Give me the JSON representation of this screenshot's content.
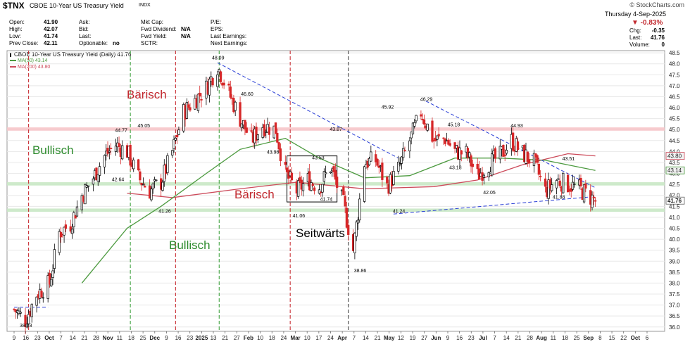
{
  "header": {
    "symbol": "$TNX",
    "name": "CBOE 10-Year US Treasury Yield",
    "exchange": "INDX",
    "watermark": "© StockCharts.com",
    "date": "Thursday  4-Sep-2025",
    "change_pct": "▼ -0.83%",
    "left_cols": [
      [
        {
          "k": "Open:",
          "v": "41.90"
        },
        {
          "k": "High:",
          "v": "42.07"
        },
        {
          "k": "Low:",
          "v": "41.74"
        },
        {
          "k": "Prev Close:",
          "v": "42.11"
        }
      ],
      [
        {
          "k": "Ask:",
          "v": ""
        },
        {
          "k": "Bid:",
          "v": ""
        },
        {
          "k": "Last:",
          "v": ""
        },
        {
          "k": "Optionable:",
          "v": "no"
        }
      ],
      [
        {
          "k": "Mkt Cap:",
          "v": ""
        },
        {
          "k": "Fwd Dividend:",
          "v": "N/A"
        },
        {
          "k": "Fwd Yield:",
          "v": "N/A"
        },
        {
          "k": "SCTR:",
          "v": ""
        }
      ],
      [
        {
          "k": "P/E:",
          "v": ""
        },
        {
          "k": "EPS:",
          "v": ""
        },
        {
          "k": "Last Earnings:",
          "v": ""
        },
        {
          "k": "Next Earnings:",
          "v": ""
        }
      ]
    ],
    "right_stats": [
      {
        "k": "Chg:",
        "v": "-0.35"
      },
      {
        "k": "Last:",
        "v": "41.76"
      },
      {
        "k": "Volume:",
        "v": "0"
      }
    ]
  },
  "legend": {
    "main": "CBOE 10-Year US Treasury Yield (Daily) 41.76",
    "ma50": "MA(50) 43.14",
    "ma200": "MA(200) 43.80"
  },
  "colors": {
    "up": "#ffffff",
    "down": "#d62728",
    "ma50": "#4c9a3f",
    "ma200": "#cc4a5a",
    "support_band": "#c9e8c5",
    "resistance_band": "#f6c5c9",
    "red_vline": "#c41e24",
    "green_vline": "#2e9a2e",
    "black_vline": "#333333",
    "trendline": "#2a3fd6",
    "bullish_text": "#2e8b2e",
    "bearish_text": "#c1272d",
    "sideways_text": "#000000",
    "price_tag": "#888888"
  },
  "chart_data": {
    "type": "candlestick",
    "title": "CBOE 10-Year US Treasury Yield (Daily)",
    "ylim": [
      35.8,
      48.6
    ],
    "yticks": [
      36.0,
      36.5,
      37.0,
      37.5,
      38.0,
      38.5,
      39.0,
      39.5,
      40.0,
      40.5,
      41.0,
      41.5,
      42.0,
      42.5,
      43.0,
      43.5,
      44.0,
      44.5,
      45.0,
      45.5,
      46.0,
      46.5,
      47.0,
      47.5,
      48.0,
      48.5
    ],
    "xlabels": [
      "9",
      "16",
      "23",
      "Oct",
      "7",
      "14",
      "21",
      "28",
      "Nov",
      "11",
      "18",
      "25",
      "Dec",
      "9",
      "16",
      "23",
      "2025",
      "13",
      "21",
      "27",
      "Feb",
      "10",
      "18",
      "24",
      "Mar",
      "10",
      "17",
      "24",
      "Apr",
      "7",
      "14",
      "21",
      "May",
      "12",
      "19",
      "27",
      "Jun",
      "9",
      "16",
      "23",
      "Jul",
      "7",
      "14",
      "21",
      "28",
      "Aug",
      "11",
      "18",
      "25",
      "Sep",
      "8",
      "15",
      "22",
      "Oct",
      "6"
    ],
    "anchors": [
      {
        "d": "2024-09-09",
        "v": 36.8
      },
      {
        "d": "2024-09-16",
        "v": 36.3
      },
      {
        "d": "2024-09-23",
        "v": 37.5
      },
      {
        "d": "2024-10-01",
        "v": 38.0
      },
      {
        "d": "2024-10-07",
        "v": 40.3
      },
      {
        "d": "2024-10-14",
        "v": 40.7
      },
      {
        "d": "2024-10-21",
        "v": 42.0
      },
      {
        "d": "2024-10-28",
        "v": 42.8
      },
      {
        "d": "2024-11-04",
        "v": 43.8
      },
      {
        "d": "2024-11-11",
        "v": 44.3
      },
      {
        "d": "2024-11-18",
        "v": 44.0
      },
      {
        "d": "2024-11-25",
        "v": 42.8
      },
      {
        "d": "2024-12-02",
        "v": 42.2
      },
      {
        "d": "2024-12-09",
        "v": 42.6
      },
      {
        "d": "2024-12-16",
        "v": 44.0
      },
      {
        "d": "2024-12-23",
        "v": 45.8
      },
      {
        "d": "2025-01-06",
        "v": 46.9
      },
      {
        "d": "2025-01-13",
        "v": 47.9
      },
      {
        "d": "2025-01-21",
        "v": 46.5
      },
      {
        "d": "2025-01-27",
        "v": 45.5
      },
      {
        "d": "2025-02-03",
        "v": 44.5
      },
      {
        "d": "2025-02-10",
        "v": 45.2
      },
      {
        "d": "2025-02-18",
        "v": 45.0
      },
      {
        "d": "2025-02-24",
        "v": 43.0
      },
      {
        "d": "2025-03-03",
        "v": 42.2
      },
      {
        "d": "2025-03-10",
        "v": 42.7
      },
      {
        "d": "2025-03-17",
        "v": 42.4
      },
      {
        "d": "2025-03-24",
        "v": 43.3
      },
      {
        "d": "2025-04-01",
        "v": 41.6
      },
      {
        "d": "2025-04-07",
        "v": 39.5
      },
      {
        "d": "2025-04-14",
        "v": 43.5
      },
      {
        "d": "2025-04-21",
        "v": 43.6
      },
      {
        "d": "2025-04-28",
        "v": 42.4
      },
      {
        "d": "2025-05-05",
        "v": 43.2
      },
      {
        "d": "2025-05-12",
        "v": 44.5
      },
      {
        "d": "2025-05-19",
        "v": 45.8
      },
      {
        "d": "2025-05-27",
        "v": 44.5
      },
      {
        "d": "2025-06-03",
        "v": 44.6
      },
      {
        "d": "2025-06-09",
        "v": 44.0
      },
      {
        "d": "2025-06-16",
        "v": 43.9
      },
      {
        "d": "2025-06-23",
        "v": 42.9
      },
      {
        "d": "2025-07-01",
        "v": 43.5
      },
      {
        "d": "2025-07-07",
        "v": 43.8
      },
      {
        "d": "2025-07-14",
        "v": 44.5
      },
      {
        "d": "2025-07-21",
        "v": 43.9
      },
      {
        "d": "2025-07-28",
        "v": 43.5
      },
      {
        "d": "2025-08-04",
        "v": 42.2
      },
      {
        "d": "2025-08-11",
        "v": 42.7
      },
      {
        "d": "2025-08-18",
        "v": 42.5
      },
      {
        "d": "2025-08-25",
        "v": 42.3
      },
      {
        "d": "2025-09-04",
        "v": 41.76
      }
    ],
    "ma50": [
      {
        "d": "2024-09-09",
        "v": null
      },
      {
        "d": "2024-10-21",
        "v": 38.0
      },
      {
        "d": "2024-11-18",
        "v": 40.5
      },
      {
        "d": "2024-12-09",
        "v": 41.5
      },
      {
        "d": "2025-01-06",
        "v": 43.0
      },
      {
        "d": "2025-01-27",
        "v": 44.1
      },
      {
        "d": "2025-02-24",
        "v": 44.6
      },
      {
        "d": "2025-03-17",
        "v": 43.7
      },
      {
        "d": "2025-04-14",
        "v": 42.8
      },
      {
        "d": "2025-05-12",
        "v": 42.9
      },
      {
        "d": "2025-06-09",
        "v": 43.7
      },
      {
        "d": "2025-07-07",
        "v": 43.7
      },
      {
        "d": "2025-08-04",
        "v": 43.6
      },
      {
        "d": "2025-09-04",
        "v": 43.14
      }
    ],
    "ma200": [
      {
        "d": "2024-09-09",
        "v": null
      },
      {
        "d": "2024-11-18",
        "v": 42.1
      },
      {
        "d": "2024-12-16",
        "v": 41.9
      },
      {
        "d": "2025-01-27",
        "v": 42.3
      },
      {
        "d": "2025-03-03",
        "v": 42.6
      },
      {
        "d": "2025-04-14",
        "v": 42.3
      },
      {
        "d": "2025-05-27",
        "v": 42.4
      },
      {
        "d": "2025-06-23",
        "v": 42.7
      },
      {
        "d": "2025-07-21",
        "v": 43.4
      },
      {
        "d": "2025-08-18",
        "v": 43.9
      },
      {
        "d": "2025-09-04",
        "v": 43.8
      }
    ],
    "bands": [
      {
        "kind": "resistance",
        "from": 44.95,
        "to": 45.1
      },
      {
        "kind": "support",
        "from": 42.45,
        "to": 42.6
      },
      {
        "kind": "support",
        "from": 41.25,
        "to": 41.4
      }
    ],
    "trendlines": [
      {
        "from": {
          "d": "2025-01-13",
          "v": 48.05
        },
        "to": {
          "d": "2025-05-05",
          "v": 43.7
        }
      },
      {
        "from": {
          "d": "2025-05-22",
          "v": 46.3
        },
        "to": {
          "d": "2025-09-04",
          "v": 42.35
        }
      },
      {
        "from": {
          "d": "2025-05-02",
          "v": 41.15
        },
        "to": {
          "d": "2025-09-04",
          "v": 41.95
        }
      },
      {
        "from": {
          "d": "2024-09-09",
          "v": 36.9
        },
        "to": {
          "d": "2024-09-30",
          "v": 36.9
        }
      }
    ],
    "range_box": {
      "from": "2025-02-25",
      "to": "2025-03-28",
      "top": 43.8,
      "bottom": 41.7
    },
    "vlines": [
      {
        "d": "2024-09-18",
        "kind": "red"
      },
      {
        "d": "2024-11-20",
        "kind": "green"
      },
      {
        "d": "2024-12-18",
        "kind": "red"
      },
      {
        "d": "2025-01-14",
        "kind": "green"
      },
      {
        "d": "2025-02-27",
        "kind": "red"
      },
      {
        "d": "2025-04-04",
        "kind": "black"
      }
    ],
    "annotations": [
      {
        "d": "2024-09-16",
        "v": 36.0,
        "text": "38.03"
      },
      {
        "d": "2024-11-14",
        "v": 44.9,
        "text": "44.77"
      },
      {
        "d": "2024-11-28",
        "v": 45.1,
        "text": "45.05"
      },
      {
        "d": "2024-11-12",
        "v": 42.65,
        "text": "42.64"
      },
      {
        "d": "2024-12-11",
        "v": 41.2,
        "text": "41.26"
      },
      {
        "d": "2025-01-13",
        "v": 48.2,
        "text": "48.09"
      },
      {
        "d": "2025-01-31",
        "v": 46.55,
        "text": "46.60"
      },
      {
        "d": "2025-02-16",
        "v": 43.9,
        "text": "43.98"
      },
      {
        "d": "2025-03-16",
        "v": 43.65,
        "text": "43.53"
      },
      {
        "d": "2025-03-27",
        "v": 44.95,
        "text": "43.87"
      },
      {
        "d": "2025-03-21",
        "v": 41.75,
        "text": "41.74"
      },
      {
        "d": "2025-03-04",
        "v": 41.0,
        "text": "41.06"
      },
      {
        "d": "2025-04-11",
        "v": 38.5,
        "text": "38.86"
      },
      {
        "d": "2025-04-28",
        "v": 45.95,
        "text": "45.92"
      },
      {
        "d": "2025-05-05",
        "v": 41.2,
        "text": "41.24"
      },
      {
        "d": "2025-05-22",
        "v": 46.3,
        "text": "46.29"
      },
      {
        "d": "2025-06-08",
        "v": 45.15,
        "text": "45.18"
      },
      {
        "d": "2025-06-09",
        "v": 43.2,
        "text": "43.18"
      },
      {
        "d": "2025-06-30",
        "v": 42.05,
        "text": "42.05"
      },
      {
        "d": "2025-07-17",
        "v": 45.1,
        "text": "44.93"
      },
      {
        "d": "2025-08-18",
        "v": 43.6,
        "text": "43.51"
      },
      {
        "d": "2025-08-12",
        "v": 41.85,
        "text": "41.88"
      }
    ],
    "labels": [
      {
        "text": "Bärisch",
        "kind": "bearish"
      },
      {
        "text": "Bullisch",
        "kind": "bullish"
      },
      {
        "text": "Bärisch",
        "kind": "bearish"
      },
      {
        "text": "Bullisch",
        "kind": "bullish"
      },
      {
        "text": "Seitwärts",
        "kind": "sideways"
      }
    ],
    "price_tags": [
      {
        "v": 43.8,
        "text": "43.80"
      },
      {
        "v": 43.14,
        "text": "43.14"
      },
      {
        "v": 41.76,
        "text": "41.76"
      }
    ],
    "ytick_label_41_76_last": "41.76"
  }
}
